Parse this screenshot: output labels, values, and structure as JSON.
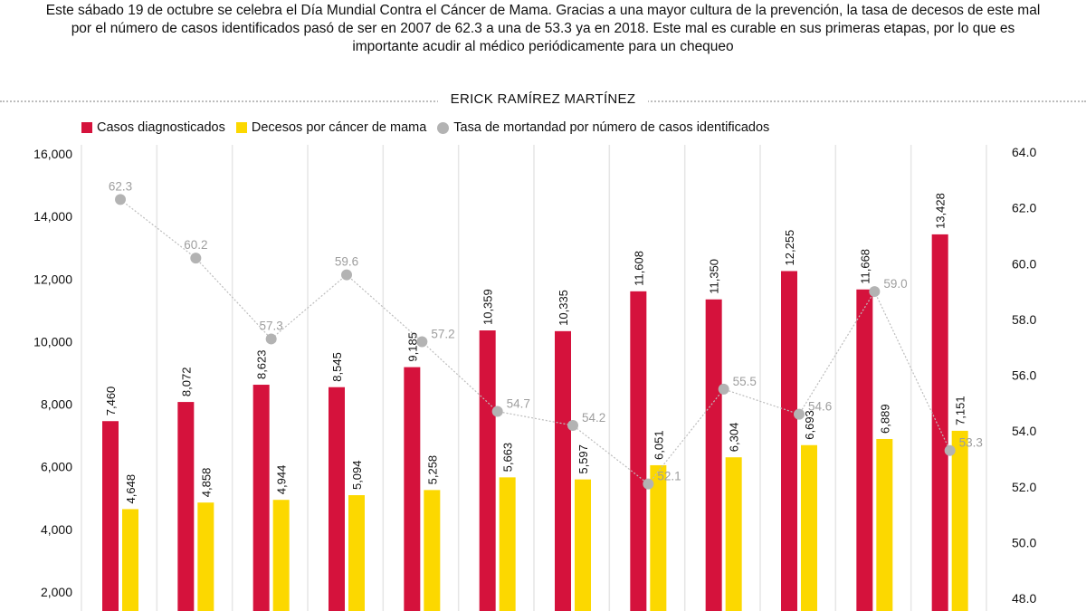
{
  "intro": "Este sábado 19 de octubre se celebra el Día Mundial Contra el Cáncer de Mama. Gracias a una mayor cultura de la prevención, la tasa de decesos de este mal por el número de casos identificados pasó de ser en 2007 de 62.3 a una de 53.3 ya en 2018. Este mal es curable en sus primeras etapas, por lo que es importante acudir al médico periódicamente para un chequeo",
  "byline": "ERICK RAMÍREZ MARTÍNEZ",
  "legend": [
    {
      "label": "Casos diagnosticados",
      "color": "#d5123c",
      "shape": "square"
    },
    {
      "label": "Decesos por cáncer de mama",
      "color": "#fcd800",
      "shape": "square"
    },
    {
      "label": "Tasa de mortandad por número de casos identificados",
      "color": "#b3b3b3",
      "shape": "circle"
    }
  ],
  "chart_data": {
    "type": "bar",
    "title": "",
    "xlabel": "",
    "ylabel": "",
    "ylim": [
      0,
      16000
    ],
    "y_ticks": [
      "16,000",
      "14,000",
      "12,000",
      "10,000",
      "8,000",
      "6,000",
      "4,000",
      "2,000"
    ],
    "y2lim": [
      44.0,
      64.0
    ],
    "y2_ticks": [
      "64.0",
      "62.0",
      "60.0",
      "58.0",
      "56.0",
      "54.0",
      "52.0",
      "50.0",
      "48.0"
    ],
    "grid": "vertical",
    "legend_position": "top-left",
    "series": [
      {
        "name": "Casos diagnosticados",
        "color": "#d5123c",
        "values": [
          7460,
          8072,
          8623,
          8545,
          9185,
          10359,
          10335,
          11608,
          11350,
          12255,
          11668,
          13428
        ],
        "labels": [
          "7,460",
          "8,072",
          "8,623",
          "8,545",
          "9,185",
          "10,359",
          "10,335",
          "11,608",
          "11,350",
          "12,255",
          "11,668",
          "13,428"
        ]
      },
      {
        "name": "Decesos por cáncer de mama",
        "color": "#fcd800",
        "values": [
          4648,
          4858,
          4944,
          5094,
          5258,
          5663,
          5597,
          6051,
          6304,
          6693,
          6889,
          7151
        ],
        "labels": [
          "4,648",
          "4,858",
          "4,944",
          "5,094",
          "5,258",
          "5,663",
          "5,597",
          "6,051",
          "6,304",
          "6,693",
          "6,889",
          "7,151"
        ]
      },
      {
        "name": "Tasa de mortandad por número de casos identificados",
        "color": "#b3b3b3",
        "type": "line",
        "axis": "right",
        "values": [
          62.3,
          60.2,
          57.3,
          59.6,
          57.2,
          54.7,
          54.2,
          52.1,
          55.5,
          54.6,
          59.0,
          53.3
        ],
        "labels": [
          "62.3",
          "60.2",
          "57.3",
          "59.6",
          "57.2",
          "54.7",
          "54.2",
          "52.1",
          "55.5",
          "54.6",
          "59.0",
          "53.3"
        ]
      }
    ]
  }
}
